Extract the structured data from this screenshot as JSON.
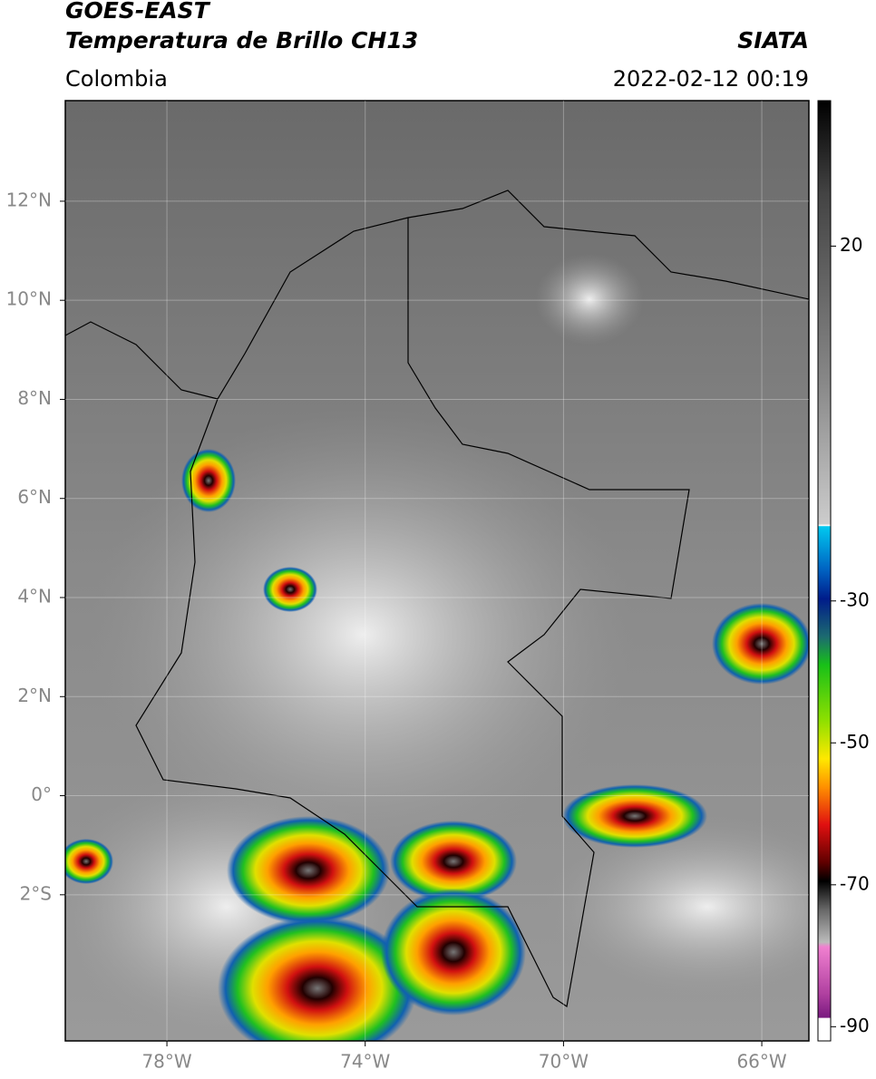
{
  "header": {
    "satellite": "GOES-EAST",
    "product": "Temperatura de Brillo CH13",
    "source": "SIATA",
    "region": "Colombia",
    "datetime": "2022-02-12 00:19"
  },
  "map": {
    "xlim": [
      -80.05,
      -65.05
    ],
    "ylim": [
      -4.95,
      14.03
    ],
    "xticks": [
      {
        "value": -78,
        "label": "78°W"
      },
      {
        "value": -74,
        "label": "74°W"
      },
      {
        "value": -70,
        "label": "70°W"
      },
      {
        "value": -66,
        "label": "66°W"
      }
    ],
    "yticks": [
      {
        "value": 12,
        "label": "12°N"
      },
      {
        "value": 10,
        "label": "10°N"
      },
      {
        "value": 8,
        "label": "8°N"
      },
      {
        "value": 6,
        "label": "6°N"
      },
      {
        "value": 4,
        "label": "4°N"
      },
      {
        "value": 2,
        "label": "2°N"
      },
      {
        "value": 0,
        "label": "0°"
      },
      {
        "value": -2,
        "label": "2°S"
      }
    ]
  },
  "colorbar": {
    "lim": [
      -92,
      40.5
    ],
    "ticks": [
      20,
      -30,
      -50,
      -70,
      -90
    ]
  }
}
